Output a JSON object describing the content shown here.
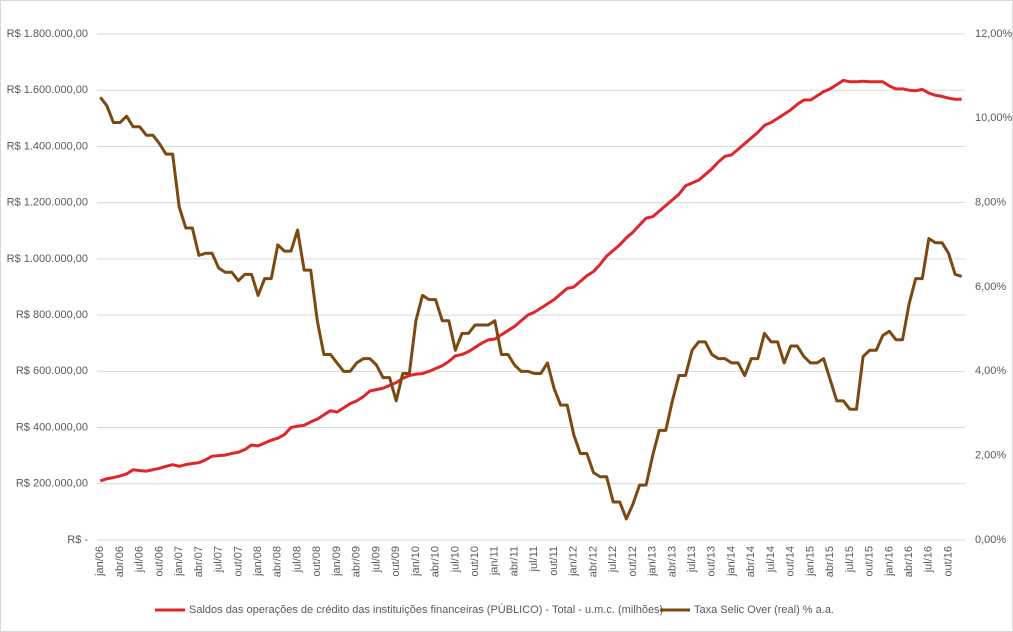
{
  "chart_data": {
    "type": "line",
    "categories": [
      "jan/06",
      null,
      null,
      "abr/06",
      null,
      null,
      "jul/06",
      null,
      null,
      "out/06",
      null,
      null,
      "jan/07",
      null,
      null,
      "abr/07",
      null,
      null,
      "jul/07",
      null,
      null,
      "out/07",
      null,
      null,
      "jan/08",
      null,
      null,
      "abr/08",
      null,
      null,
      "jul/08",
      null,
      null,
      "out/08",
      null,
      null,
      "jan/09",
      null,
      null,
      "abr/09",
      null,
      null,
      "jul/09",
      null,
      null,
      "out/09",
      null,
      null,
      "jan/10",
      null,
      null,
      "abr/10",
      null,
      null,
      "jul/10",
      null,
      null,
      "out/10",
      null,
      null,
      "jan/11",
      null,
      null,
      "abr/11",
      null,
      null,
      "jul/11",
      null,
      null,
      "out/11",
      null,
      null,
      "jan/12",
      null,
      null,
      "abr/12",
      null,
      null,
      "jul/12",
      null,
      null,
      "out/12",
      null,
      null,
      "jan/13",
      null,
      null,
      "abr/13",
      null,
      null,
      "jul/13",
      null,
      null,
      "out/13",
      null,
      null,
      "jan/14",
      null,
      null,
      "abr/14",
      null,
      null,
      "jul/14",
      null,
      null,
      "out/14",
      null,
      null,
      "jan/15",
      null,
      null,
      "abr/15",
      null,
      null,
      "jul/15",
      null,
      null,
      "out/15",
      null,
      null,
      "jan/16",
      null,
      null,
      "abr/16",
      null,
      null,
      "jul/16",
      null,
      null,
      "out/16",
      null,
      null
    ],
    "series": [
      {
        "name": "Saldos das operações de crédito das instituições financeiras (PÚBLICO) - Total - u.m.c. (milhões)",
        "color": "#e0262b",
        "axis": "y",
        "values": [
          210000,
          218000,
          222000,
          228000,
          235000,
          250000,
          247000,
          245000,
          250000,
          255000,
          262000,
          268000,
          262000,
          268000,
          272000,
          275000,
          285000,
          298000,
          300000,
          302000,
          308000,
          312000,
          322000,
          338000,
          335000,
          345000,
          355000,
          362000,
          375000,
          400000,
          405000,
          408000,
          420000,
          430000,
          445000,
          460000,
          455000,
          470000,
          485000,
          495000,
          510000,
          530000,
          535000,
          540000,
          550000,
          560000,
          575000,
          585000,
          590000,
          592000,
          600000,
          610000,
          620000,
          635000,
          655000,
          660000,
          670000,
          685000,
          700000,
          712000,
          715000,
          730000,
          745000,
          760000,
          780000,
          800000,
          810000,
          825000,
          840000,
          855000,
          875000,
          895000,
          900000,
          920000,
          940000,
          955000,
          980000,
          1010000,
          1030000,
          1050000,
          1075000,
          1095000,
          1120000,
          1145000,
          1150000,
          1170000,
          1190000,
          1210000,
          1230000,
          1260000,
          1270000,
          1280000,
          1300000,
          1320000,
          1345000,
          1365000,
          1370000,
          1390000,
          1410000,
          1430000,
          1450000,
          1475000,
          1485000,
          1500000,
          1515000,
          1530000,
          1550000,
          1565000,
          1565000,
          1580000,
          1595000,
          1605000,
          1620000,
          1635000,
          1630000,
          1630000,
          1632000,
          1630000,
          1630000,
          1630000,
          1615000,
          1605000,
          1605000,
          1600000,
          1598000,
          1603000,
          1590000,
          1582000,
          1578000,
          1572000,
          1568000,
          1568000
        ]
      },
      {
        "name": "Taxa Selic Over (real) % a.a.",
        "color": "#7b4a12",
        "axis": "y2",
        "values": [
          10.5,
          10.3,
          9.9,
          9.9,
          10.05,
          9.8,
          9.8,
          9.6,
          9.6,
          9.4,
          9.15,
          9.15,
          7.9,
          7.4,
          7.4,
          6.75,
          6.8,
          6.8,
          6.45,
          6.35,
          6.35,
          6.15,
          6.3,
          6.3,
          5.8,
          6.2,
          6.2,
          7.0,
          6.85,
          6.85,
          7.35,
          6.4,
          6.4,
          5.2,
          4.4,
          4.4,
          4.2,
          4.0,
          4.0,
          4.2,
          4.3,
          4.3,
          4.15,
          3.85,
          3.85,
          3.3,
          3.95,
          3.95,
          5.2,
          5.8,
          5.7,
          5.7,
          5.2,
          5.2,
          4.5,
          4.9,
          4.9,
          5.1,
          5.1,
          5.1,
          5.2,
          4.4,
          4.4,
          4.15,
          4.0,
          4.0,
          3.95,
          3.95,
          4.2,
          3.6,
          3.2,
          3.2,
          2.5,
          2.05,
          2.05,
          1.6,
          1.5,
          1.5,
          0.9,
          0.9,
          0.5,
          0.85,
          1.3,
          1.3,
          2.0,
          2.6,
          2.6,
          3.3,
          3.9,
          3.9,
          4.5,
          4.7,
          4.7,
          4.4,
          4.3,
          4.3,
          4.2,
          4.2,
          3.9,
          4.3,
          4.3,
          4.9,
          4.7,
          4.7,
          4.2,
          4.6,
          4.6,
          4.35,
          4.2,
          4.2,
          4.3,
          3.8,
          3.3,
          3.3,
          3.1,
          3.1,
          4.35,
          4.5,
          4.5,
          4.85,
          4.95,
          4.75,
          4.75,
          5.6,
          6.2,
          6.2,
          7.15,
          7.05,
          7.05,
          6.8,
          6.3,
          6.25
        ]
      }
    ],
    "ylim": [
      0,
      1800000
    ],
    "yticks": [
      {
        "value": 0,
        "label": "R$ -"
      },
      {
        "value": 200000,
        "label": "R$ 200.000,00"
      },
      {
        "value": 400000,
        "label": "R$ 400.000,00"
      },
      {
        "value": 600000,
        "label": "R$ 600.000,00"
      },
      {
        "value": 800000,
        "label": "R$ 800.000,00"
      },
      {
        "value": 1000000,
        "label": "R$ 1.000.000,00"
      },
      {
        "value": 1200000,
        "label": "R$ 1.200.000,00"
      },
      {
        "value": 1400000,
        "label": "R$ 1.400.000,00"
      },
      {
        "value": 1600000,
        "label": "R$ 1.600.000,00"
      },
      {
        "value": 1800000,
        "label": "R$ 1.800.000,00"
      }
    ],
    "y2lim": [
      0,
      12
    ],
    "y2ticks": [
      {
        "value": 0,
        "label": "0,00%"
      },
      {
        "value": 2,
        "label": "2,00%"
      },
      {
        "value": 4,
        "label": "4,00%"
      },
      {
        "value": 6,
        "label": "6,00%"
      },
      {
        "value": 8,
        "label": "8,00%"
      },
      {
        "value": 10,
        "label": "10,00%"
      },
      {
        "value": 12,
        "label": "12,00%"
      }
    ],
    "grid": true,
    "legend": "bottom"
  }
}
